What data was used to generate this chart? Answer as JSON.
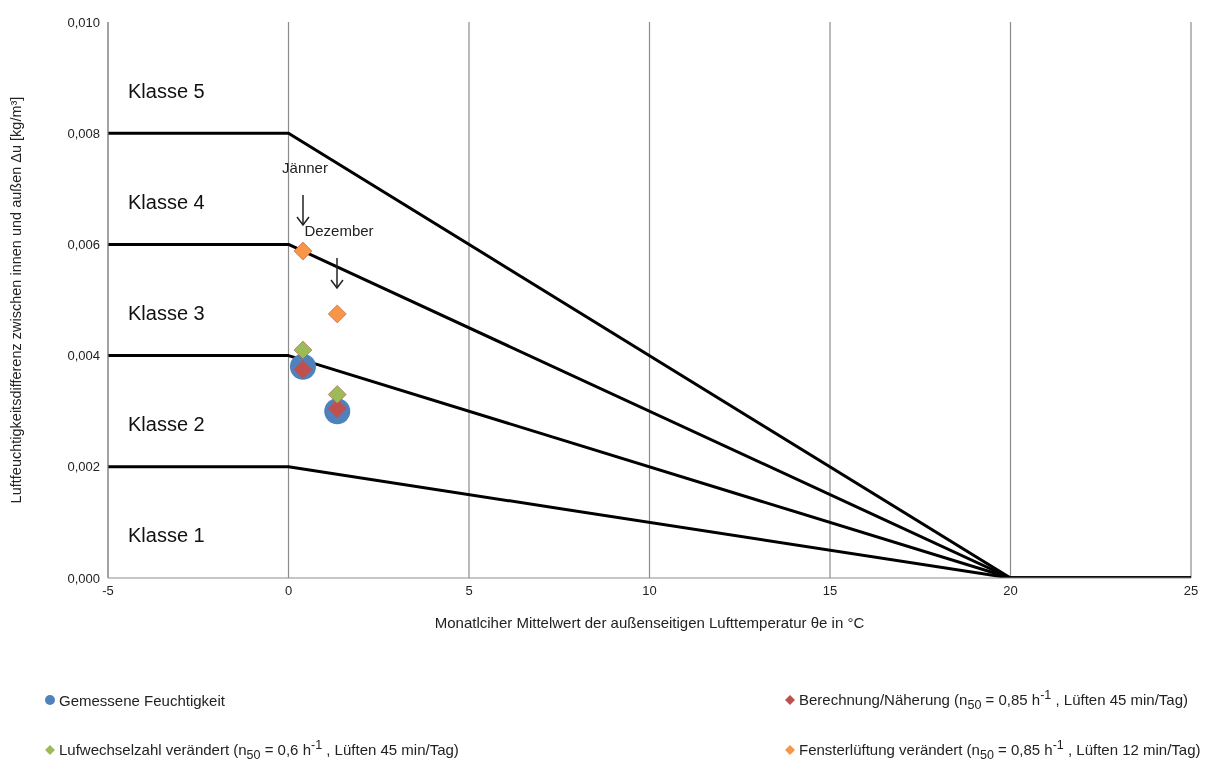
{
  "chart_data": {
    "type": "line",
    "xlabel": "Monatlciher Mittelwert der außenseitigen Lufttemperatur θe in °C",
    "ylabel": "Luftfeuchtigkeitsdifferenz zwischen innen und außen Δu [kg/m³]",
    "xlim": [
      -5,
      25
    ],
    "xticks": [
      -5,
      0,
      5,
      10,
      15,
      20,
      25
    ],
    "ylim": [
      0,
      0.01
    ],
    "yticks": [
      {
        "value": 0,
        "label": "0,000"
      },
      {
        "value": 0.002,
        "label": "0,002"
      },
      {
        "value": 0.004,
        "label": "0,004"
      },
      {
        "value": 0.006,
        "label": "0,006"
      },
      {
        "value": 0.008,
        "label": "0,008"
      },
      {
        "value": 0.01,
        "label": "0,010"
      }
    ],
    "grid": "x",
    "legend": "bottom",
    "series": [
      {
        "type": "line",
        "color": "#000000",
        "marker": "none",
        "x": [
          -5,
          0,
          20,
          25
        ],
        "values": [
          0.002,
          0.002,
          0,
          0
        ]
      },
      {
        "type": "line",
        "color": "#000000",
        "marker": "none",
        "x": [
          -5,
          0,
          20,
          25
        ],
        "values": [
          0.004,
          0.004,
          0,
          0
        ]
      },
      {
        "type": "line",
        "color": "#000000",
        "marker": "none",
        "x": [
          -5,
          0,
          20,
          25
        ],
        "values": [
          0.006,
          0.006,
          0,
          0
        ]
      },
      {
        "type": "line",
        "color": "#000000",
        "marker": "none",
        "x": [
          -5,
          0,
          20,
          25
        ],
        "values": [
          0.008,
          0.008,
          0,
          0
        ]
      },
      {
        "type": "scatter",
        "name": "Gemessene Feuchtigkeit",
        "color": "#4f81bd",
        "marker": "circle",
        "x": [
          0.4,
          1.35
        ],
        "values": [
          0.0038,
          0.003
        ]
      },
      {
        "type": "scatter",
        "name": "Berechnung/Näherung (n$_{50}$ = 0,85 h$^{-1}$ , Lüften 45 min/Tag)",
        "color": "#c0504d",
        "marker": "diamond",
        "x": [
          0.4,
          1.35
        ],
        "values": [
          0.00375,
          0.00305
        ]
      },
      {
        "type": "scatter",
        "name": "Lufwechselzahl verändert (n$_{50}$ = 0,6 h$^{-1}$ , Lüften 45 min/Tag)",
        "color": "#9bbb59",
        "marker": "diamond",
        "x": [
          0.4,
          1.35
        ],
        "values": [
          0.0041,
          0.0033
        ]
      },
      {
        "type": "scatter",
        "name": "Fensterlüftung verändert (n$_{50}$ = 0,85 h$^{-1}$ , Lüften 12 min/Tag)",
        "color": "#f79646",
        "marker": "diamond",
        "x": [
          0.4,
          1.35
        ],
        "values": [
          0.00588,
          0.00475
        ]
      }
    ],
    "annotations": [
      "Klasse 5",
      "Klasse 4",
      "Klasse 3",
      "Klasse 2",
      "Klasse 1",
      "Jänner",
      "Dezember"
    ]
  }
}
